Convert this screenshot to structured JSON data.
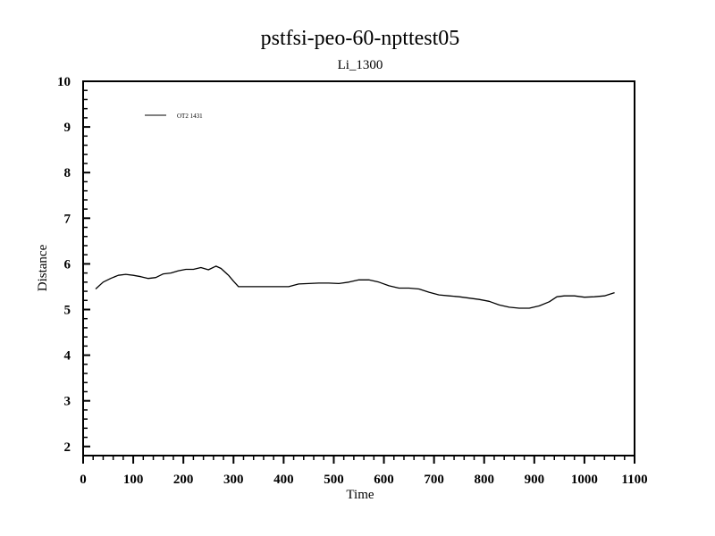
{
  "chart_data": {
    "type": "line",
    "title": "pstfsi-peo-60-npttest05",
    "subtitle": "Li_1300",
    "xlabel": "Time",
    "ylabel": "Distance",
    "xlim": [
      0,
      1100
    ],
    "ylim": [
      1.8,
      10
    ],
    "x_ticks": [
      0,
      100,
      200,
      300,
      400,
      500,
      600,
      700,
      800,
      900,
      1000,
      1100
    ],
    "y_ticks": [
      2,
      3,
      4,
      5,
      6,
      7,
      8,
      9,
      10
    ],
    "grid": false,
    "legend_position": "top-left",
    "series": [
      {
        "name": "OT2 1431",
        "color": "#000000",
        "x": [
          25,
          40,
          55,
          70,
          85,
          100,
          115,
          130,
          145,
          160,
          175,
          190,
          205,
          220,
          235,
          250,
          265,
          275,
          290,
          300,
          310,
          330,
          350,
          370,
          390,
          410,
          430,
          450,
          470,
          490,
          510,
          530,
          550,
          570,
          590,
          610,
          630,
          650,
          670,
          690,
          710,
          730,
          750,
          770,
          790,
          810,
          830,
          850,
          870,
          890,
          910,
          930,
          945,
          960,
          980,
          1000,
          1020,
          1040,
          1060
        ],
        "y": [
          5.45,
          5.6,
          5.68,
          5.75,
          5.77,
          5.75,
          5.72,
          5.68,
          5.7,
          5.78,
          5.8,
          5.85,
          5.88,
          5.88,
          5.92,
          5.87,
          5.95,
          5.9,
          5.75,
          5.62,
          5.5,
          5.5,
          5.5,
          5.5,
          5.5,
          5.5,
          5.56,
          5.57,
          5.58,
          5.58,
          5.57,
          5.6,
          5.65,
          5.65,
          5.6,
          5.52,
          5.47,
          5.47,
          5.45,
          5.38,
          5.32,
          5.3,
          5.28,
          5.25,
          5.22,
          5.18,
          5.1,
          5.05,
          5.03,
          5.03,
          5.08,
          5.17,
          5.28,
          5.3,
          5.3,
          5.27,
          5.28,
          5.3,
          5.37
        ]
      }
    ]
  }
}
